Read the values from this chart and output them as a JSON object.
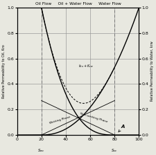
{
  "title_parts": [
    "Oil Flow",
    "Oil + Water Flow",
    "Water Flow"
  ],
  "ylabel_left": "Relative Permeability to Oil, Kro",
  "ylabel_right": "Relative Permeability to Water, krw",
  "xlim": [
    0,
    100
  ],
  "ylim": [
    0,
    1.0
  ],
  "Swc": 20,
  "Soc": 80,
  "grid_color": "#999999",
  "bg_color": "#e8e8e0",
  "line_color": "#000000",
  "dashed_vert_color": "#777777",
  "kro_exp": 2.8,
  "krw_exp": 2.2,
  "annotation_A": "A"
}
